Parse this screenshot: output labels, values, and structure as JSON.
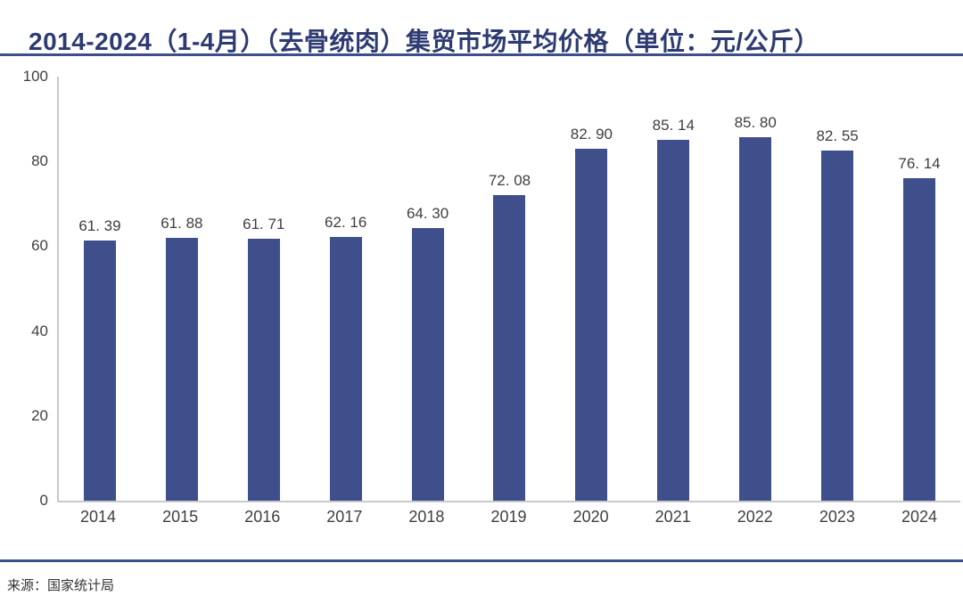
{
  "title": "2014-2024（1-4月）（去骨统肉）集贸市场平均价格（单位：元/公斤）",
  "source": "来源：国家统计局",
  "colors": {
    "title": "#2D3B72",
    "rule": "#3D4E8B",
    "bar": "#3E4F8C",
    "axis": "#C9C9C9",
    "text": "#3F3F3F",
    "source": "#333333"
  },
  "chart_data": {
    "type": "bar",
    "title": "2014-2024（1-4月）（去骨统肉）集贸市场平均价格（单位：元/公斤）",
    "categories": [
      "2014",
      "2015",
      "2016",
      "2017",
      "2018",
      "2019",
      "2020",
      "2021",
      "2022",
      "2023",
      "2024"
    ],
    "values": [
      61.39,
      61.88,
      61.71,
      62.16,
      64.3,
      72.08,
      82.9,
      85.14,
      85.8,
      82.55,
      76.14
    ],
    "value_labels": [
      "61. 39",
      "61. 88",
      "61. 71",
      "62. 16",
      "64. 30",
      "72. 08",
      "82. 90",
      "85. 14",
      "85. 80",
      "82. 55",
      "76. 14"
    ],
    "xlabel": "",
    "ylabel": "",
    "ylim": [
      0,
      100
    ],
    "yticks": [
      100,
      80,
      60,
      40,
      20,
      0
    ],
    "grid": false,
    "legend_position": "none",
    "bar_color": "#3E4F8C"
  }
}
